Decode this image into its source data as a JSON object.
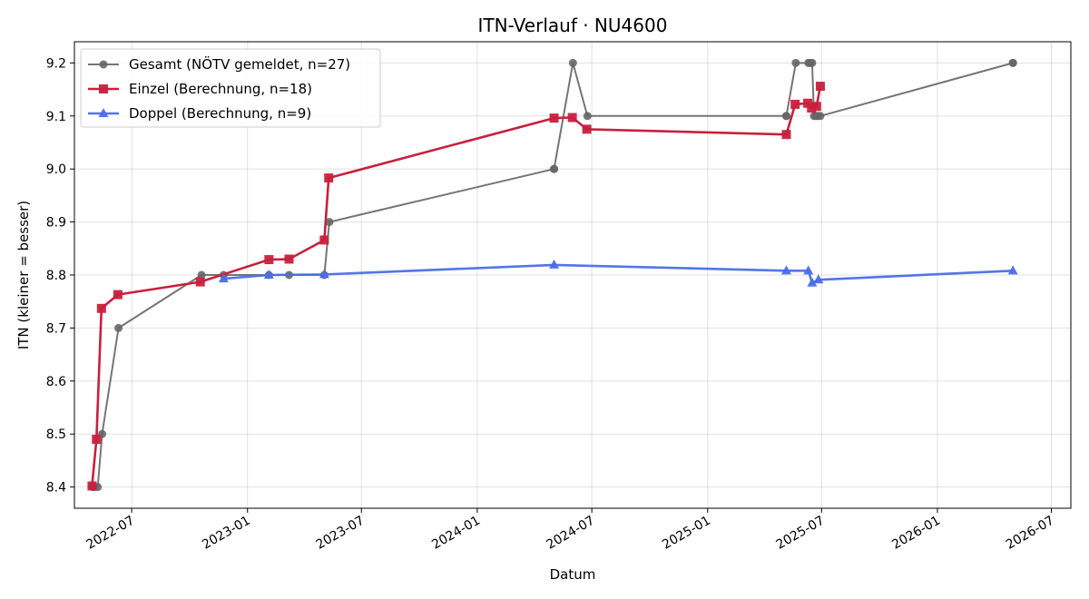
{
  "chart_data": {
    "type": "line",
    "title": "ITN-Verlauf · NU4600",
    "xlabel": "Datum",
    "ylabel": "ITN  (kleiner = besser)",
    "x_type": "date",
    "xlim": [
      "2022-04-01",
      "2026-08-01"
    ],
    "ylim": [
      8.36,
      9.24
    ],
    "x_ticks": [
      "2022-07-01",
      "2023-01-01",
      "2023-07-01",
      "2024-01-01",
      "2024-07-01",
      "2025-01-01",
      "2025-07-01",
      "2026-01-01",
      "2026-07-01"
    ],
    "x_tick_labels": [
      "2022-07",
      "2023-01",
      "2023-07",
      "2024-01",
      "2024-07",
      "2025-01",
      "2025-07",
      "2026-01",
      "2026-07"
    ],
    "y_ticks": [
      8.4,
      8.5,
      8.6,
      8.7,
      8.8,
      8.9,
      9.0,
      9.1,
      9.2
    ],
    "y_tick_labels": [
      "8.4",
      "8.5",
      "8.6",
      "8.7",
      "8.8",
      "8.9",
      "9.0",
      "9.1",
      "9.2"
    ],
    "grid": true,
    "legend_position": "top-left",
    "series": [
      {
        "name": "Gesamt (NÖTV gemeldet, n=27)",
        "color": "#666666",
        "marker": "circle",
        "points": [
          {
            "x": "2022-05-01",
            "y": 8.4
          },
          {
            "x": "2022-05-01",
            "y": 8.4
          },
          {
            "x": "2022-05-08",
            "y": 8.4
          },
          {
            "x": "2022-05-15",
            "y": 8.5
          },
          {
            "x": "2022-06-10",
            "y": 8.7
          },
          {
            "x": "2022-10-20",
            "y": 8.8
          },
          {
            "x": "2022-11-24",
            "y": 8.8
          },
          {
            "x": "2023-02-04",
            "y": 8.8
          },
          {
            "x": "2023-03-08",
            "y": 8.8
          },
          {
            "x": "2023-05-03",
            "y": 8.8
          },
          {
            "x": "2023-05-11",
            "y": 8.9
          },
          {
            "x": "2024-05-02",
            "y": 9.0
          },
          {
            "x": "2024-05-02",
            "y": 9.0
          },
          {
            "x": "2024-06-01",
            "y": 9.2
          },
          {
            "x": "2024-06-24",
            "y": 9.1
          },
          {
            "x": "2025-05-06",
            "y": 9.1
          },
          {
            "x": "2025-05-06",
            "y": 9.1
          },
          {
            "x": "2025-05-21",
            "y": 9.2
          },
          {
            "x": "2025-06-10",
            "y": 9.2
          },
          {
            "x": "2025-06-13",
            "y": 9.2
          },
          {
            "x": "2025-06-16",
            "y": 9.2
          },
          {
            "x": "2025-06-19",
            "y": 9.1
          },
          {
            "x": "2025-06-22",
            "y": 9.1
          },
          {
            "x": "2025-06-25",
            "y": 9.1
          },
          {
            "x": "2025-06-29",
            "y": 9.1
          },
          {
            "x": "2026-05-01",
            "y": 9.2
          },
          {
            "x": "2026-05-01",
            "y": 9.2
          }
        ]
      },
      {
        "name": "Einzel (Berechnung, n=18)",
        "color": "#c8203c",
        "marker": "square",
        "points": [
          {
            "x": "2022-04-29",
            "y": 8.402
          },
          {
            "x": "2022-05-06",
            "y": 8.49
          },
          {
            "x": "2022-05-14",
            "y": 8.737
          },
          {
            "x": "2022-06-09",
            "y": 8.763
          },
          {
            "x": "2022-10-18",
            "y": 8.787
          },
          {
            "x": "2023-02-04",
            "y": 8.829
          },
          {
            "x": "2023-03-08",
            "y": 8.83
          },
          {
            "x": "2023-05-03",
            "y": 8.866
          },
          {
            "x": "2023-05-10",
            "y": 8.983
          },
          {
            "x": "2024-05-02",
            "y": 9.096
          },
          {
            "x": "2024-05-31",
            "y": 9.097
          },
          {
            "x": "2024-06-23",
            "y": 9.075
          },
          {
            "x": "2025-05-06",
            "y": 9.065
          },
          {
            "x": "2025-05-20",
            "y": 9.122
          },
          {
            "x": "2025-06-09",
            "y": 9.124
          },
          {
            "x": "2025-06-15",
            "y": 9.115
          },
          {
            "x": "2025-06-23",
            "y": 9.118
          },
          {
            "x": "2025-06-29",
            "y": 9.156
          }
        ]
      },
      {
        "name": "Doppel (Berechnung, n=9)",
        "color": "#4a6ee8",
        "marker": "triangle",
        "points": [
          {
            "x": "2022-11-24",
            "y": 8.793
          },
          {
            "x": "2023-02-04",
            "y": 8.8
          },
          {
            "x": "2023-05-03",
            "y": 8.801
          },
          {
            "x": "2024-05-02",
            "y": 8.819
          },
          {
            "x": "2025-05-06",
            "y": 8.808
          },
          {
            "x": "2025-06-10",
            "y": 8.808
          },
          {
            "x": "2025-06-16",
            "y": 8.785
          },
          {
            "x": "2025-06-26",
            "y": 8.791
          },
          {
            "x": "2026-05-01",
            "y": 8.808
          }
        ]
      }
    ]
  }
}
